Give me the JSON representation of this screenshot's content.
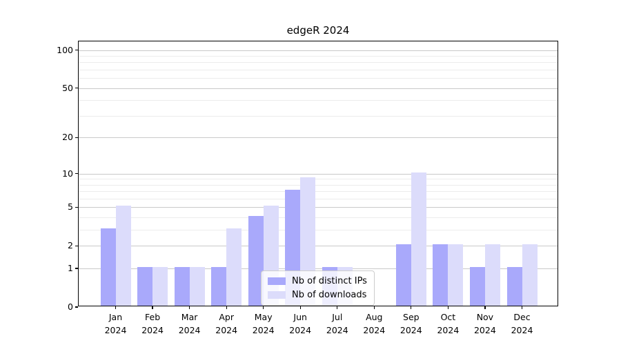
{
  "title": "edgeR 2024",
  "chart_data": {
    "type": "bar",
    "title": "edgeR 2024",
    "xlabel": "",
    "ylabel": "",
    "y_scale": "log-like: position proportional to log10(1 + y), 0 at baseline",
    "categories": [
      "Jan",
      "Feb",
      "Mar",
      "Apr",
      "May",
      "Jun",
      "Jul",
      "Aug",
      "Sep",
      "Oct",
      "Nov",
      "Dec"
    ],
    "category_year": "2024",
    "series": [
      {
        "name": "Nb of distinct IPs",
        "color": "#a9a9fb",
        "values": [
          3,
          1,
          1,
          1,
          4,
          7,
          1,
          0,
          2,
          2,
          1,
          1
        ]
      },
      {
        "name": "Nb of downloads",
        "color": "#dcdcfb",
        "values": [
          5,
          1,
          1,
          3,
          5,
          9,
          1,
          0,
          10,
          2,
          2,
          2
        ]
      }
    ],
    "yticks_major": [
      0,
      1,
      2,
      5,
      10,
      20,
      50,
      100
    ],
    "yticks_minor": [
      3,
      4,
      6,
      7,
      8,
      9,
      30,
      40,
      60,
      70,
      80,
      90
    ],
    "ylim": [
      0,
      116
    ],
    "grid": "horizontal major and minor gridlines",
    "legend_position": "inside, lower center"
  },
  "colors": {
    "background": "#ffffff",
    "bar_distinct_ips": "#a9a9fb",
    "bar_downloads": "#dcdcfb",
    "grid_major": "#c9c9c9",
    "grid_minor": "#ececec",
    "axis_spine": "#000000",
    "legend_border": "#cccccc",
    "text": "#000000"
  }
}
